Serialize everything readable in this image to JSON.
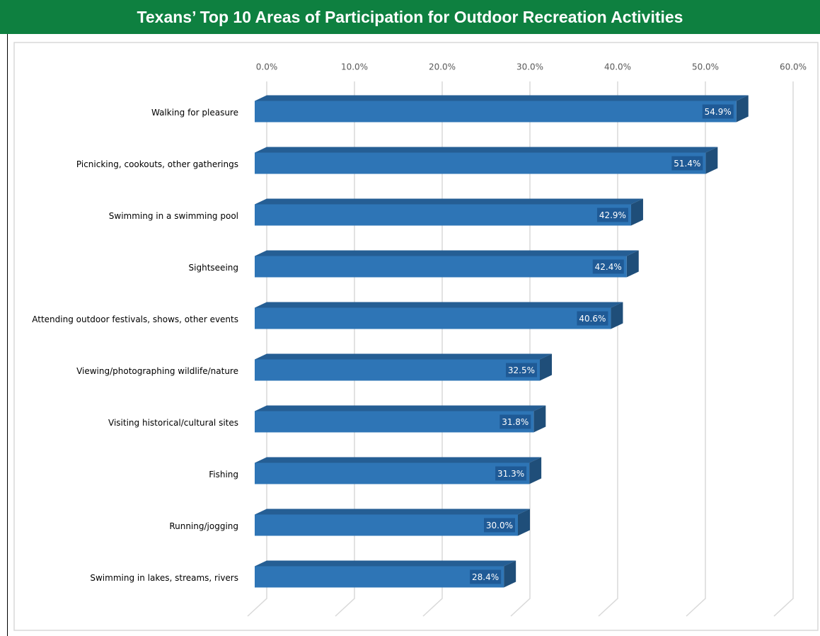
{
  "chart_data": {
    "type": "bar",
    "orientation": "horizontal",
    "title": "Texans’ Top 10 Areas of Participation for Outdoor Recreation Activities",
    "categories": [
      "Walking for pleasure",
      "Picnicking, cookouts, other gatherings",
      "Swimming in a swimming pool",
      "Sightseeing",
      "Attending outdoor festivals, shows, other events",
      "Viewing/photographing wildlife/nature",
      "Visiting historical/cultural sites",
      "Fishing",
      "Running/jogging",
      "Swimming in lakes, streams, rivers"
    ],
    "values": [
      54.9,
      51.4,
      42.9,
      42.4,
      40.6,
      32.5,
      31.8,
      31.3,
      30.0,
      28.4
    ],
    "value_labels": [
      "54.9%",
      "51.4%",
      "42.9%",
      "42.4%",
      "40.6%",
      "32.5%",
      "31.8%",
      "31.3%",
      "30.0%",
      "28.4%"
    ],
    "color": "#2e75b6",
    "xlim": [
      0,
      60
    ],
    "xticks": [
      {
        "value": 0,
        "label": "0.0%"
      },
      {
        "value": 10,
        "label": "10.0%"
      },
      {
        "value": 20,
        "label": "20.0%"
      },
      {
        "value": 30,
        "label": "30.0%"
      },
      {
        "value": 40,
        "label": "40.0%"
      },
      {
        "value": 50,
        "label": "50.0%"
      },
      {
        "value": 60,
        "label": "60.0%"
      }
    ],
    "grid": true
  }
}
